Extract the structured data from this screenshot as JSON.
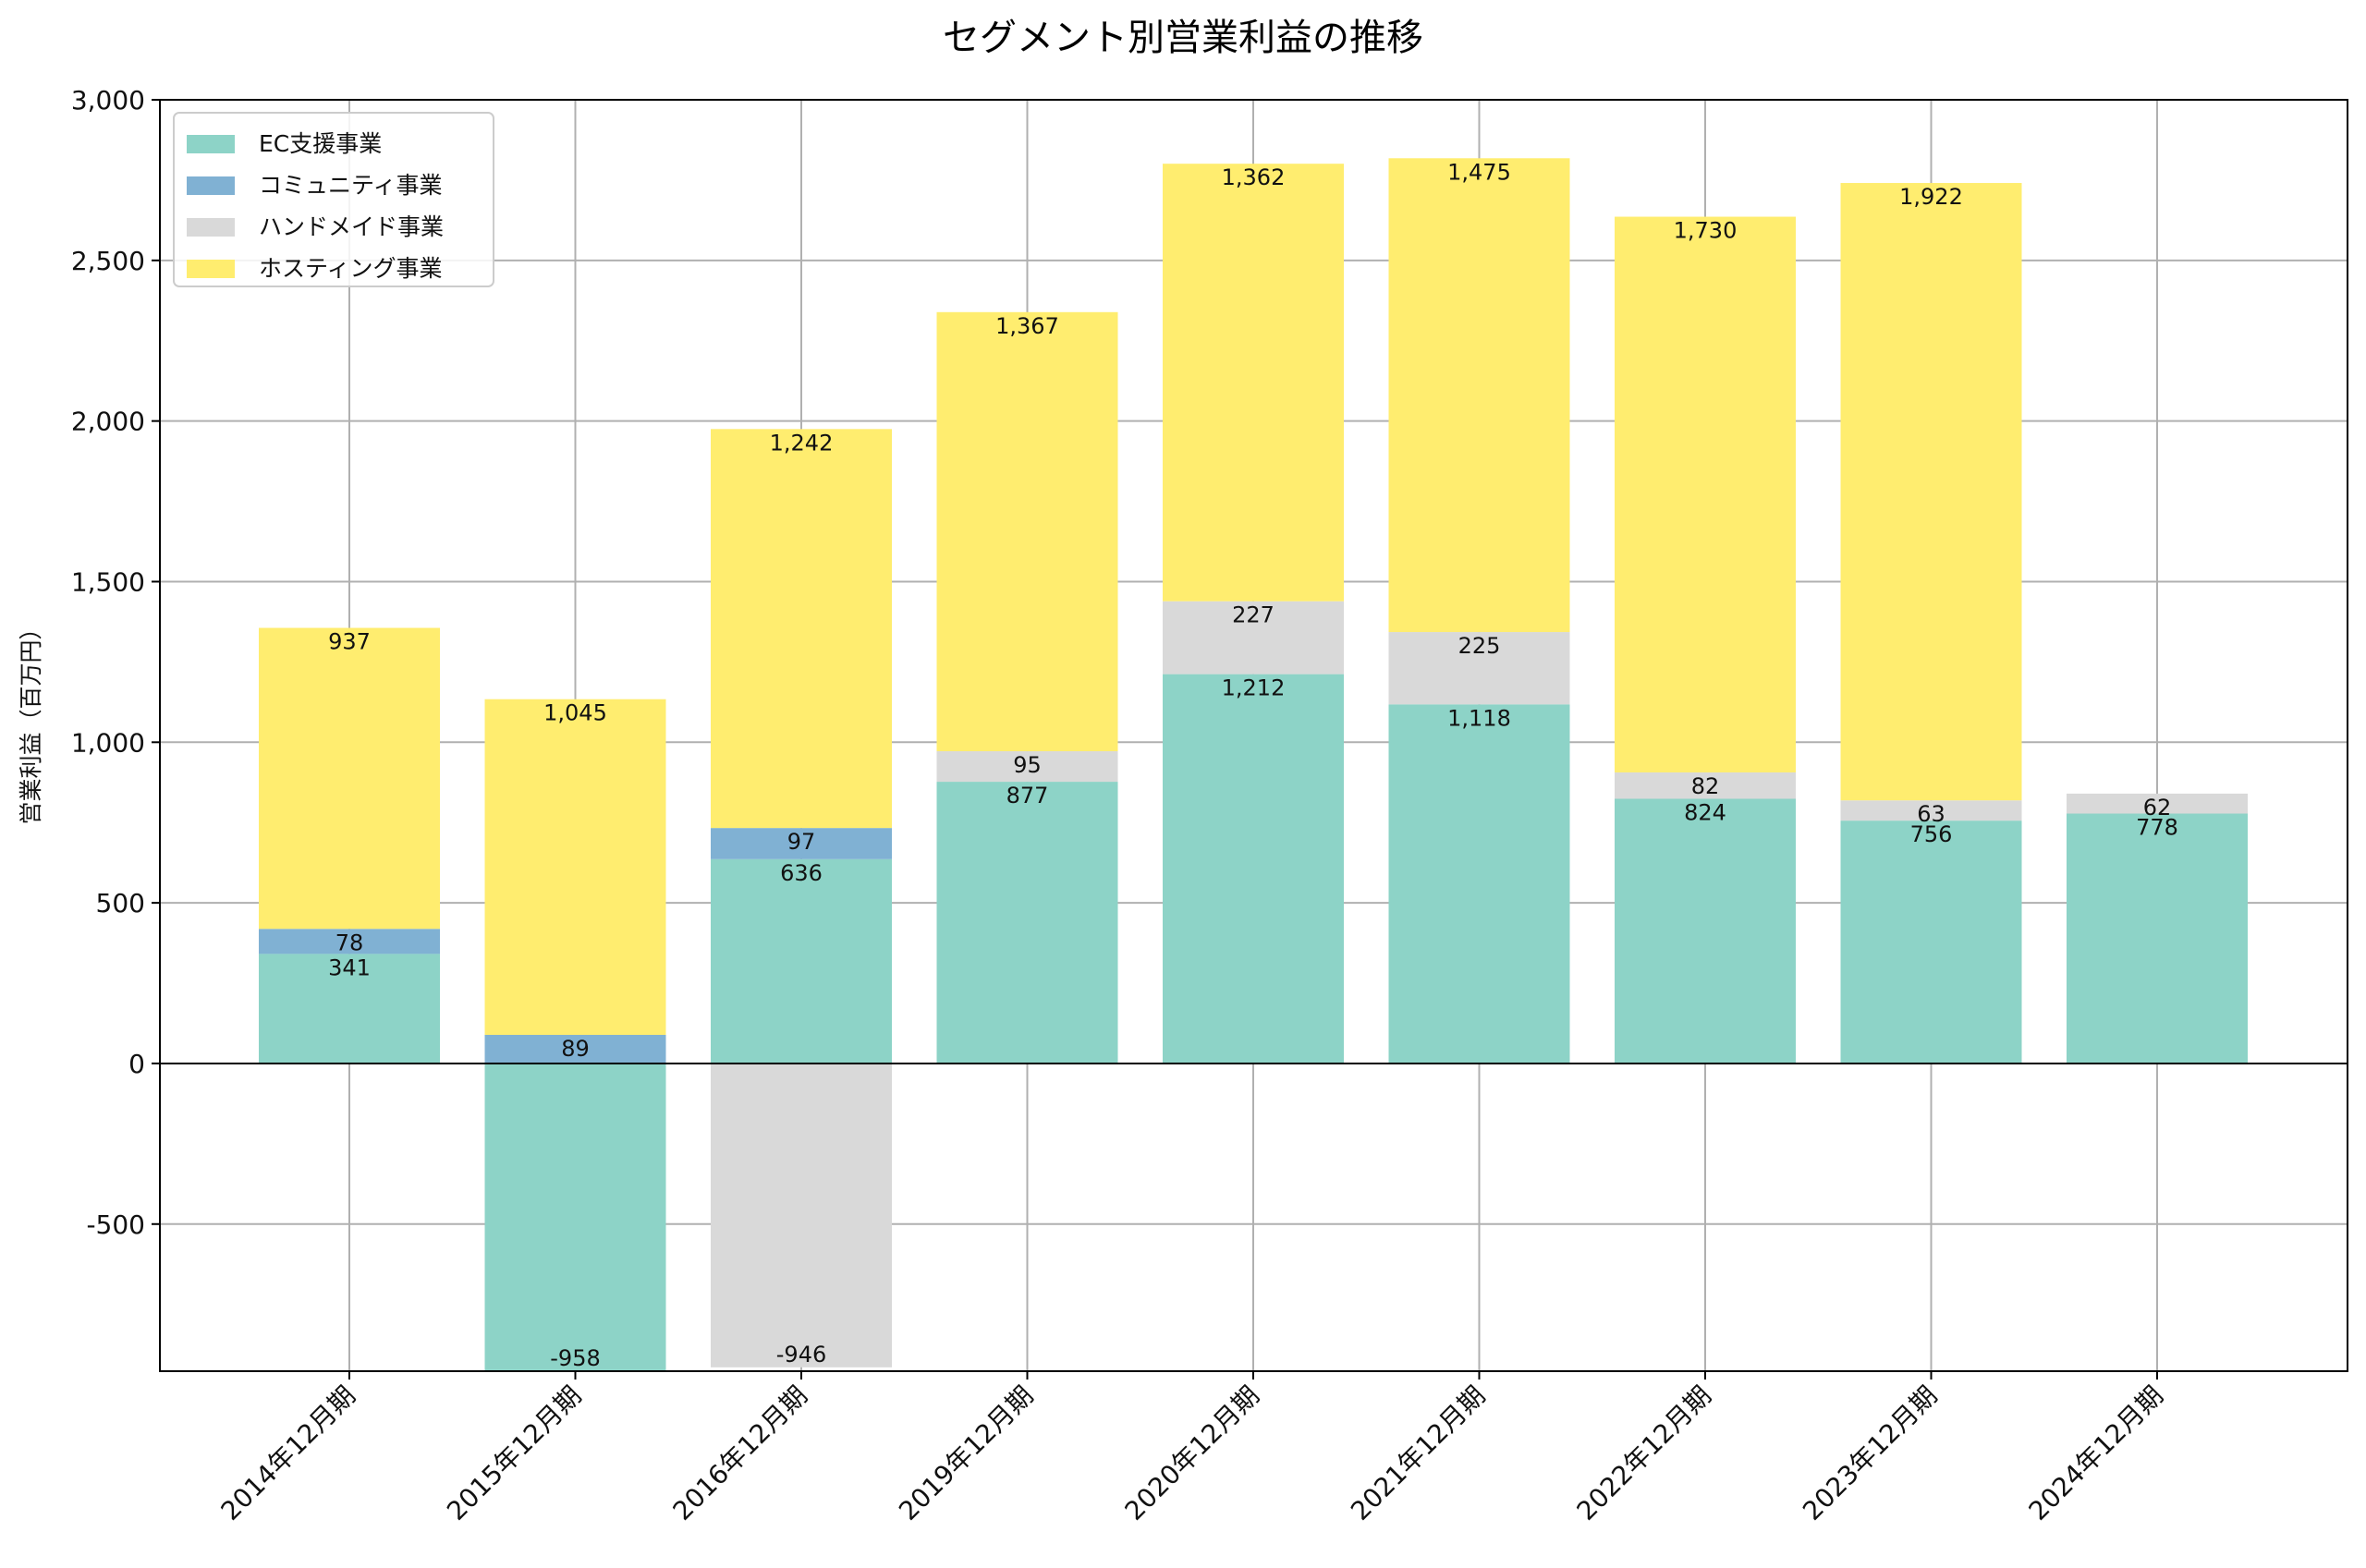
{
  "chart_data": {
    "type": "bar",
    "stacked": true,
    "title": "セグメント別営業利益の推移",
    "xlabel": "",
    "ylabel": "営業利益（百万円）",
    "ylim": [
      -958,
      3000
    ],
    "yticks": [
      -500,
      0,
      500,
      1000,
      1500,
      2000,
      2500,
      3000
    ],
    "ytick_labels": [
      "-500",
      "0",
      "500",
      "1,000",
      "1,500",
      "2,000",
      "2,500",
      "3,000"
    ],
    "grid": true,
    "legend_position": "top-left",
    "categories": [
      "2014年12月期",
      "2015年12月期",
      "2016年12月期",
      "2019年12月期",
      "2020年12月期",
      "2021年12月期",
      "2022年12月期",
      "2023年12月期",
      "2024年12月期"
    ],
    "series": [
      {
        "name": "EC支援事業",
        "color": "#8dd3c7",
        "values": [
          341,
          -958,
          636,
          877,
          1212,
          1118,
          824,
          756,
          778
        ],
        "labels": [
          "341",
          "-958",
          "636",
          "877",
          "1,212",
          "1,118",
          "824",
          "756",
          "778"
        ]
      },
      {
        "name": "コミュニティ事業",
        "color": "#80b1d3",
        "values": [
          78,
          89,
          97,
          null,
          null,
          null,
          null,
          null,
          null
        ],
        "labels": [
          "78",
          "89",
          "97",
          "",
          "",
          "",
          "",
          "",
          ""
        ]
      },
      {
        "name": "ハンドメイド事業",
        "color": "#d9d9d9",
        "values": [
          null,
          null,
          -946,
          95,
          227,
          225,
          82,
          63,
          62
        ],
        "labels": [
          "",
          "",
          "-946",
          "95",
          "227",
          "225",
          "82",
          "63",
          "62"
        ]
      },
      {
        "name": "ホスティング事業",
        "color": "#ffed6f",
        "values": [
          937,
          1045,
          1242,
          1367,
          1362,
          1475,
          1730,
          1922,
          null
        ],
        "labels": [
          "937",
          "1,045",
          "1,242",
          "1,367",
          "1,362",
          "1,475",
          "1,730",
          "1,922",
          ""
        ]
      }
    ]
  }
}
